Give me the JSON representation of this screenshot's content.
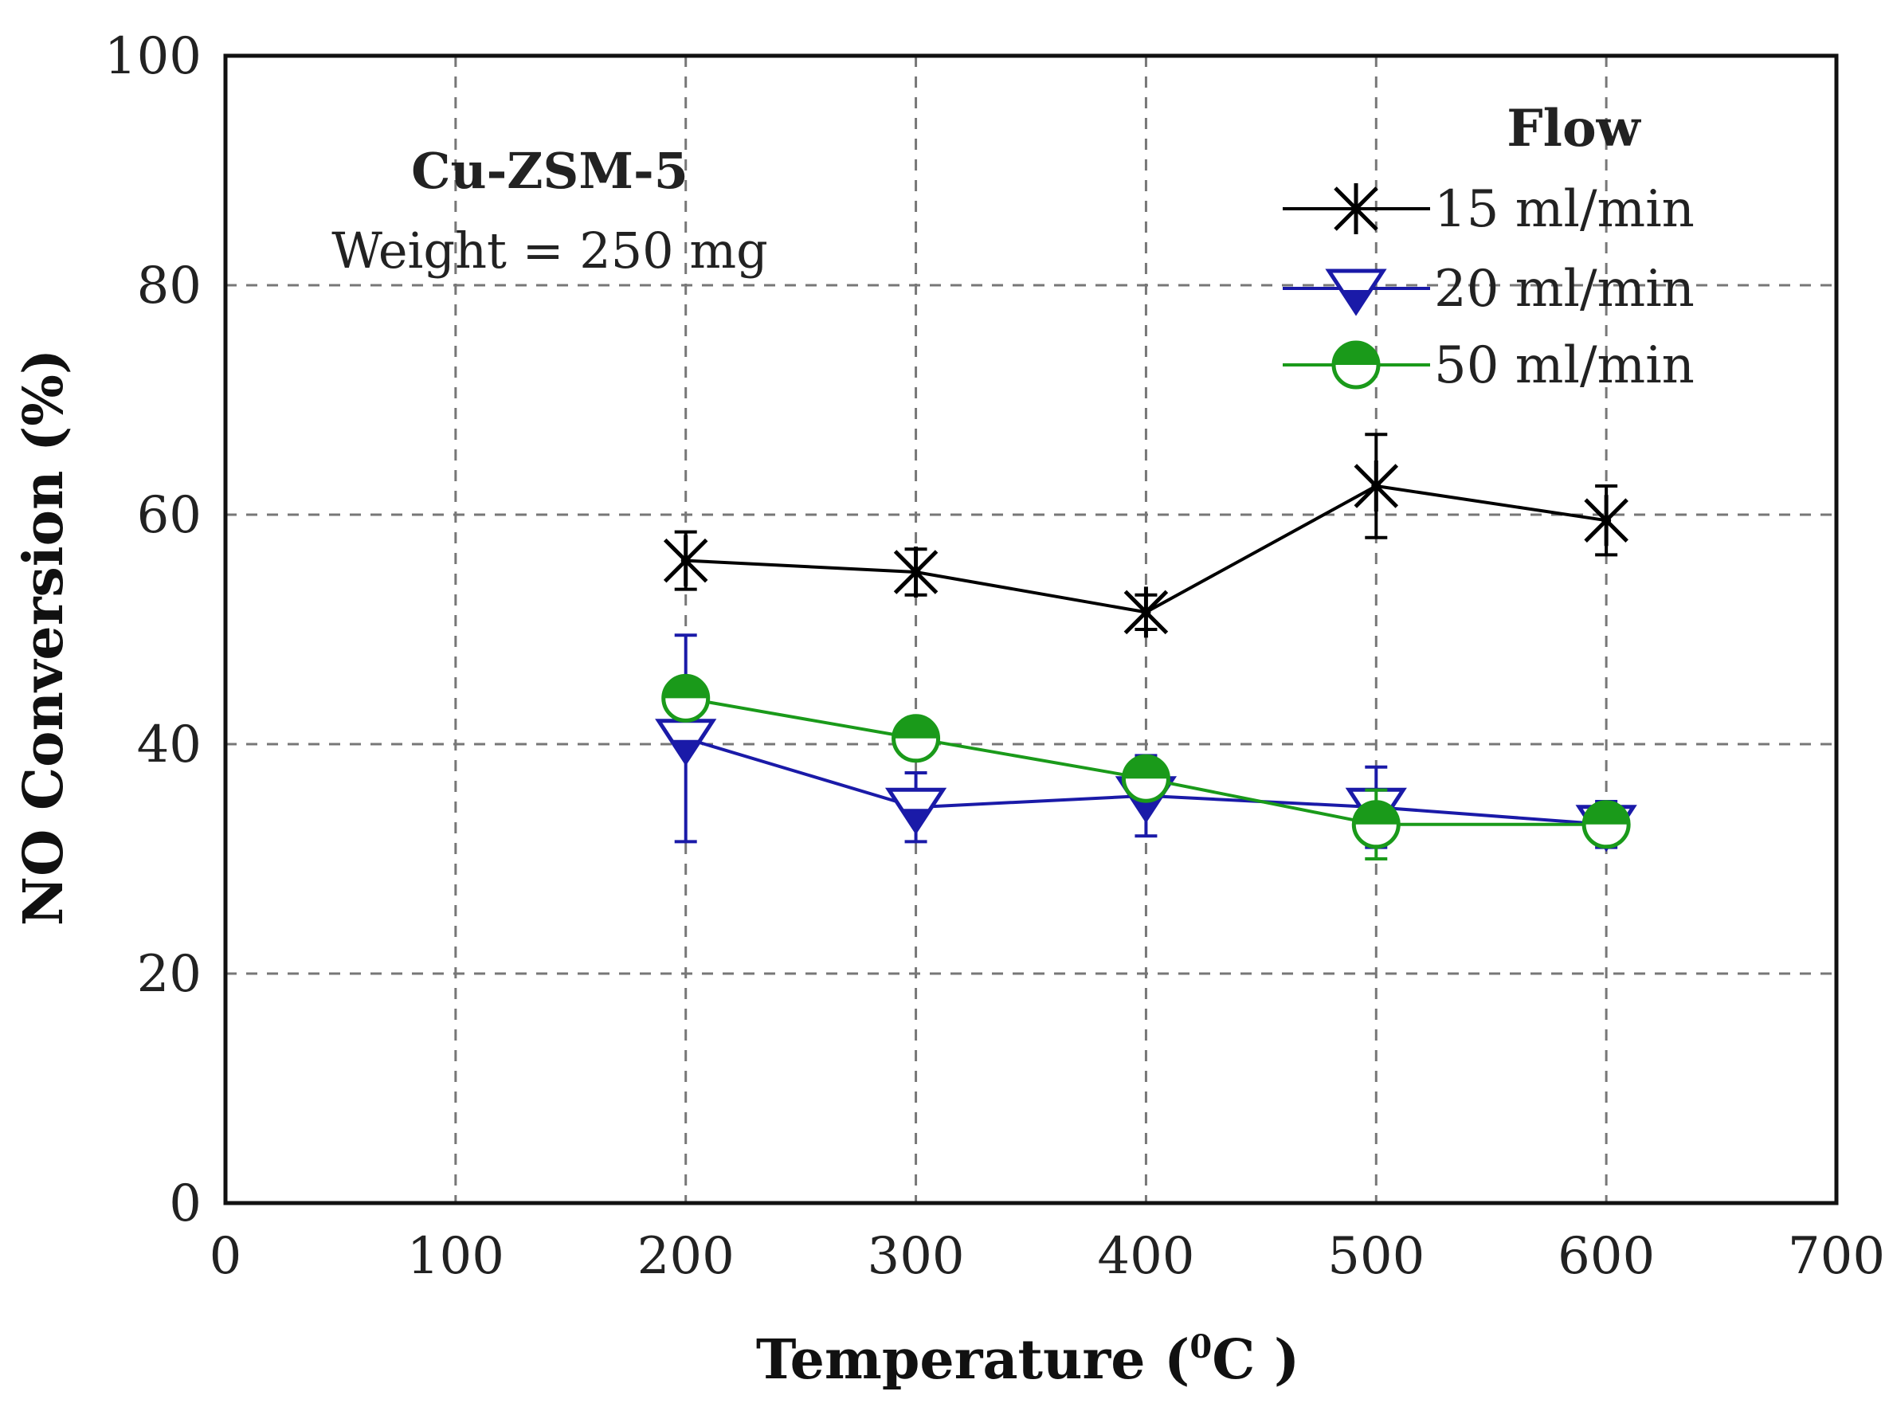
{
  "chart_data": {
    "type": "line",
    "xlabel_main": "Temperature (",
    "xlabel_sup": "0",
    "xlabel_end": "C )",
    "ylabel": "NO Conversion (%)",
    "xlim": [
      0,
      700
    ],
    "ylim": [
      0,
      100
    ],
    "xticks": [
      0,
      100,
      200,
      300,
      400,
      500,
      600,
      700
    ],
    "yticks": [
      0,
      20,
      40,
      60,
      80,
      100
    ],
    "grid": true,
    "annotation_title": "Cu-ZSM-5",
    "annotation_sub": "Weight = 250 mg",
    "legend_title": "Flow",
    "legend_position": "top-right",
    "series": [
      {
        "name": "15 ml/min",
        "color": "#000000",
        "marker": "asterisk",
        "x": [
          200,
          300,
          400,
          500,
          600
        ],
        "y": [
          56,
          55,
          51.5,
          62.5,
          59.5
        ],
        "err": [
          2.5,
          2,
          1.5,
          4.5,
          3
        ]
      },
      {
        "name": "20 ml/min",
        "color": "#1a1aa8",
        "marker": "triangle-down",
        "x": [
          200,
          300,
          400,
          500,
          600
        ],
        "y": [
          40.5,
          34.5,
          35.5,
          34.5,
          33
        ],
        "err": [
          9,
          3,
          3.5,
          3.5,
          2
        ]
      },
      {
        "name": "50 ml/min",
        "color": "#1a9a1a",
        "marker": "circle-half",
        "x": [
          200,
          300,
          400,
          500,
          600
        ],
        "y": [
          44,
          40.5,
          37,
          33,
          33
        ],
        "err": [
          1,
          1,
          1,
          3,
          1
        ]
      }
    ]
  }
}
